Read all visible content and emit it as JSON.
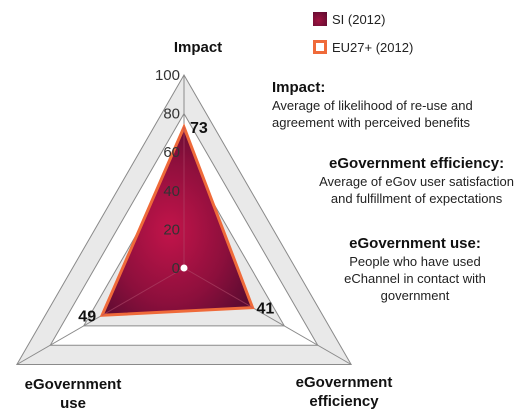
{
  "chart_data": {
    "type": "radar",
    "axes": [
      "Impact",
      "eGovernment efficiency",
      "eGovernment use"
    ],
    "axis_labels": {
      "impact": "Impact",
      "efficiency_line1": "eGovernment",
      "efficiency_line2": "efficiency",
      "use_line1": "eGovernment",
      "use_line2": "use"
    },
    "ticks": [
      "0",
      "20",
      "40",
      "60",
      "80",
      "100"
    ],
    "range": [
      0,
      100
    ],
    "series": [
      {
        "name": "SI (2012)",
        "values": [
          73,
          41,
          49
        ],
        "color": "#8a1038"
      },
      {
        "name": "EU27+ (2012)",
        "values": [
          73,
          41,
          49
        ],
        "color": "#ef6a3a"
      }
    ],
    "value_labels": [
      "73",
      "41",
      "49"
    ],
    "legend_placement": "top-right"
  },
  "notes": {
    "impact": {
      "title": "Impact:",
      "line1": "Average of likelihood of re-use and",
      "line2": "agreement with perceived benefits"
    },
    "efficiency": {
      "title": "eGovernment efficiency:",
      "line1": "Average of eGov user satisfaction",
      "line2": "and fulfillment of expectations"
    },
    "use": {
      "title": "eGovernment use:",
      "line1": "People who have used",
      "line2": "eChannel in contact with",
      "line3": "government"
    }
  }
}
